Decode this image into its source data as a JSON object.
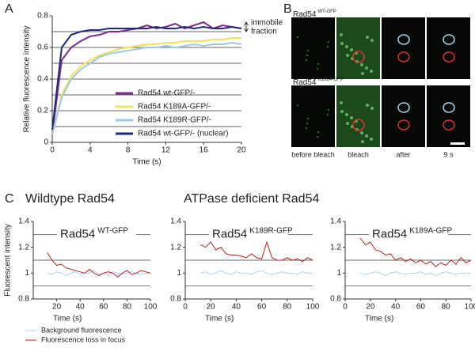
{
  "panel_labels": [
    "A",
    "B",
    "C"
  ],
  "group_title": "ATPase deficient Rad54",
  "images": {
    "rows": [
      {
        "label_main": "Rad54",
        "label_sup": "WT-GFP"
      },
      {
        "label_main": "Rad54",
        "label_sup": "K189A-GFP"
      }
    ],
    "columns": [
      "before bleach",
      "bleach",
      "after",
      "9 s"
    ]
  },
  "chart_data": [
    {
      "type": "line",
      "xlabel": "Time (s)",
      "ylabel": "Relative fluorescence intensity",
      "annotation": [
        "immobile",
        "fraction"
      ],
      "x": [
        0,
        1,
        2,
        3,
        4,
        5,
        6,
        7,
        8,
        9,
        10,
        11,
        12,
        13,
        14,
        15,
        16,
        17,
        18,
        19,
        20
      ],
      "xlim": [
        0,
        20
      ],
      "xticks": [
        0,
        4,
        8,
        12,
        16,
        20
      ],
      "ylim": [
        0,
        0.8
      ],
      "yticks": [
        0,
        0.2,
        0.4,
        0.6,
        0.8
      ],
      "ygrid": [
        0.1,
        0.2,
        0.3,
        0.4,
        0.5,
        0.6,
        0.7
      ],
      "series": [
        {
          "name": "Rad54 wt-GFP/-",
          "color": "#7b2d8e",
          "values": [
            0.05,
            0.52,
            0.6,
            0.64,
            0.67,
            0.68,
            0.7,
            0.7,
            0.71,
            0.72,
            0.74,
            0.72,
            0.73,
            0.75,
            0.72,
            0.74,
            0.76,
            0.72,
            0.74,
            0.73,
            0.72
          ]
        },
        {
          "name": "Rad54 K189A-GFP/-",
          "color": "#f2e35b",
          "values": [
            0.05,
            0.3,
            0.42,
            0.48,
            0.52,
            0.55,
            0.57,
            0.59,
            0.6,
            0.61,
            0.62,
            0.62,
            0.63,
            0.63,
            0.64,
            0.64,
            0.64,
            0.65,
            0.65,
            0.66,
            0.66
          ]
        },
        {
          "name": "Rad54 K189R-GFP/-",
          "color": "#9cc9e8",
          "values": [
            0.05,
            0.28,
            0.4,
            0.46,
            0.5,
            0.54,
            0.56,
            0.57,
            0.58,
            0.59,
            0.6,
            0.6,
            0.61,
            0.6,
            0.61,
            0.62,
            0.61,
            0.62,
            0.62,
            0.63,
            0.62
          ]
        },
        {
          "name": "Rad54 wt-GFP/- (nuclear)",
          "color": "#1f2a7a",
          "values": [
            0.08,
            0.6,
            0.68,
            0.7,
            0.71,
            0.71,
            0.72,
            0.72,
            0.72,
            0.72,
            0.72,
            0.73,
            0.72,
            0.72,
            0.73,
            0.72,
            0.73,
            0.72,
            0.72,
            0.73,
            0.72
          ]
        }
      ]
    },
    {
      "type": "line",
      "title": "Wildtype Rad54",
      "label_main": "Rad54",
      "label_sup": "WT-GFP",
      "xlabel": "Time (s)",
      "ylabel": "Fluorescent intensity",
      "x": [
        12,
        16,
        20,
        24,
        28,
        32,
        36,
        40,
        44,
        48,
        52,
        56,
        60,
        64,
        68,
        72,
        76,
        80,
        84,
        88,
        92,
        96,
        100
      ],
      "xlim": [
        0,
        100
      ],
      "xticks": [
        20,
        40,
        60,
        80,
        100
      ],
      "ylim": [
        0.8,
        1.4
      ],
      "yticks": [
        0.8,
        1,
        1.2,
        1.4
      ],
      "ygrid": [
        0.9,
        1.1,
        1.3
      ],
      "series": [
        {
          "name": "Background fluorescence",
          "color": "#a8d4ee",
          "values": [
            1.0,
            0.99,
            1.01,
            1.0,
            0.98,
            1.0,
            1.01,
            0.99,
            1.0,
            1.0,
            1.02,
            0.99,
            1.0,
            0.98,
            1.01,
            1.0,
            0.99,
            1.0,
            1.01,
            1.0,
            0.99,
            1.0,
            1.0
          ]
        },
        {
          "name": "Fluorescence loss in focus",
          "color": "#b22222",
          "values": [
            1.16,
            1.1,
            1.06,
            1.07,
            1.04,
            1.03,
            1.02,
            1.01,
            1.0,
            1.03,
            1.0,
            0.98,
            1.0,
            1.01,
            1.0,
            0.97,
            1.0,
            1.02,
            0.99,
            1.0,
            1.02,
            1.01,
            1.0
          ]
        }
      ]
    },
    {
      "type": "line",
      "label_main": "Rad54",
      "label_sup": "K189R-GFP",
      "xlabel": "Time (s)",
      "x": [
        12,
        16,
        20,
        24,
        28,
        32,
        36,
        40,
        44,
        48,
        52,
        56,
        60,
        64,
        68,
        72,
        76,
        80,
        84,
        88,
        92,
        96,
        100
      ],
      "xlim": [
        0,
        100
      ],
      "xticks": [
        0,
        20,
        40,
        60,
        80,
        100
      ],
      "ylim": [
        0.8,
        1.4
      ],
      "yticks": [
        0.8,
        1,
        1.2,
        1.4
      ],
      "ygrid": [
        0.9,
        1.1,
        1.3
      ],
      "series": [
        {
          "color": "#a8d4ee",
          "values": [
            1.0,
            1.01,
            0.99,
            1.0,
            1.02,
            1.0,
            0.99,
            1.01,
            1.0,
            1.0,
            0.99,
            1.01,
            1.02,
            1.0,
            0.99,
            1.0,
            1.01,
            1.0,
            1.0,
            0.99,
            1.01,
            1.0,
            1.0
          ]
        },
        {
          "color": "#b22222",
          "values": [
            1.22,
            1.2,
            1.24,
            1.18,
            1.2,
            1.15,
            1.14,
            1.14,
            1.13,
            1.12,
            1.15,
            1.12,
            1.11,
            1.24,
            1.12,
            1.1,
            1.1,
            1.12,
            1.1,
            1.11,
            1.09,
            1.12,
            1.1
          ]
        }
      ]
    },
    {
      "type": "line",
      "label_main": "Rad54",
      "label_sup": "K189A-GFP",
      "xlabel": "Time (s)",
      "x": [
        12,
        16,
        20,
        24,
        28,
        32,
        36,
        40,
        44,
        48,
        52,
        56,
        60,
        64,
        68,
        72,
        76,
        80,
        84,
        88,
        92,
        96,
        100
      ],
      "xlim": [
        0,
        100
      ],
      "xticks": [
        0,
        20,
        40,
        60,
        80,
        100
      ],
      "ylim": [
        0.8,
        1.4
      ],
      "yticks": [
        0.8,
        1,
        1.2,
        1.4
      ],
      "ygrid": [
        0.9,
        1.1,
        1.3
      ],
      "series": [
        {
          "color": "#a8d4ee",
          "values": [
            1.0,
            0.99,
            1.0,
            1.01,
            1.0,
            0.98,
            1.0,
            1.01,
            1.0,
            0.99,
            1.0,
            1.0,
            1.01,
            0.99,
            1.0,
            0.98,
            1.0,
            1.01,
            1.0,
            0.99,
            1.0,
            1.0,
            1.0
          ]
        },
        {
          "color": "#b22222",
          "values": [
            1.27,
            1.22,
            1.24,
            1.18,
            1.17,
            1.14,
            1.15,
            1.1,
            1.12,
            1.09,
            1.11,
            1.08,
            1.1,
            1.07,
            1.09,
            1.05,
            1.08,
            1.06,
            1.1,
            1.07,
            1.12,
            1.08,
            1.1
          ]
        }
      ]
    }
  ]
}
